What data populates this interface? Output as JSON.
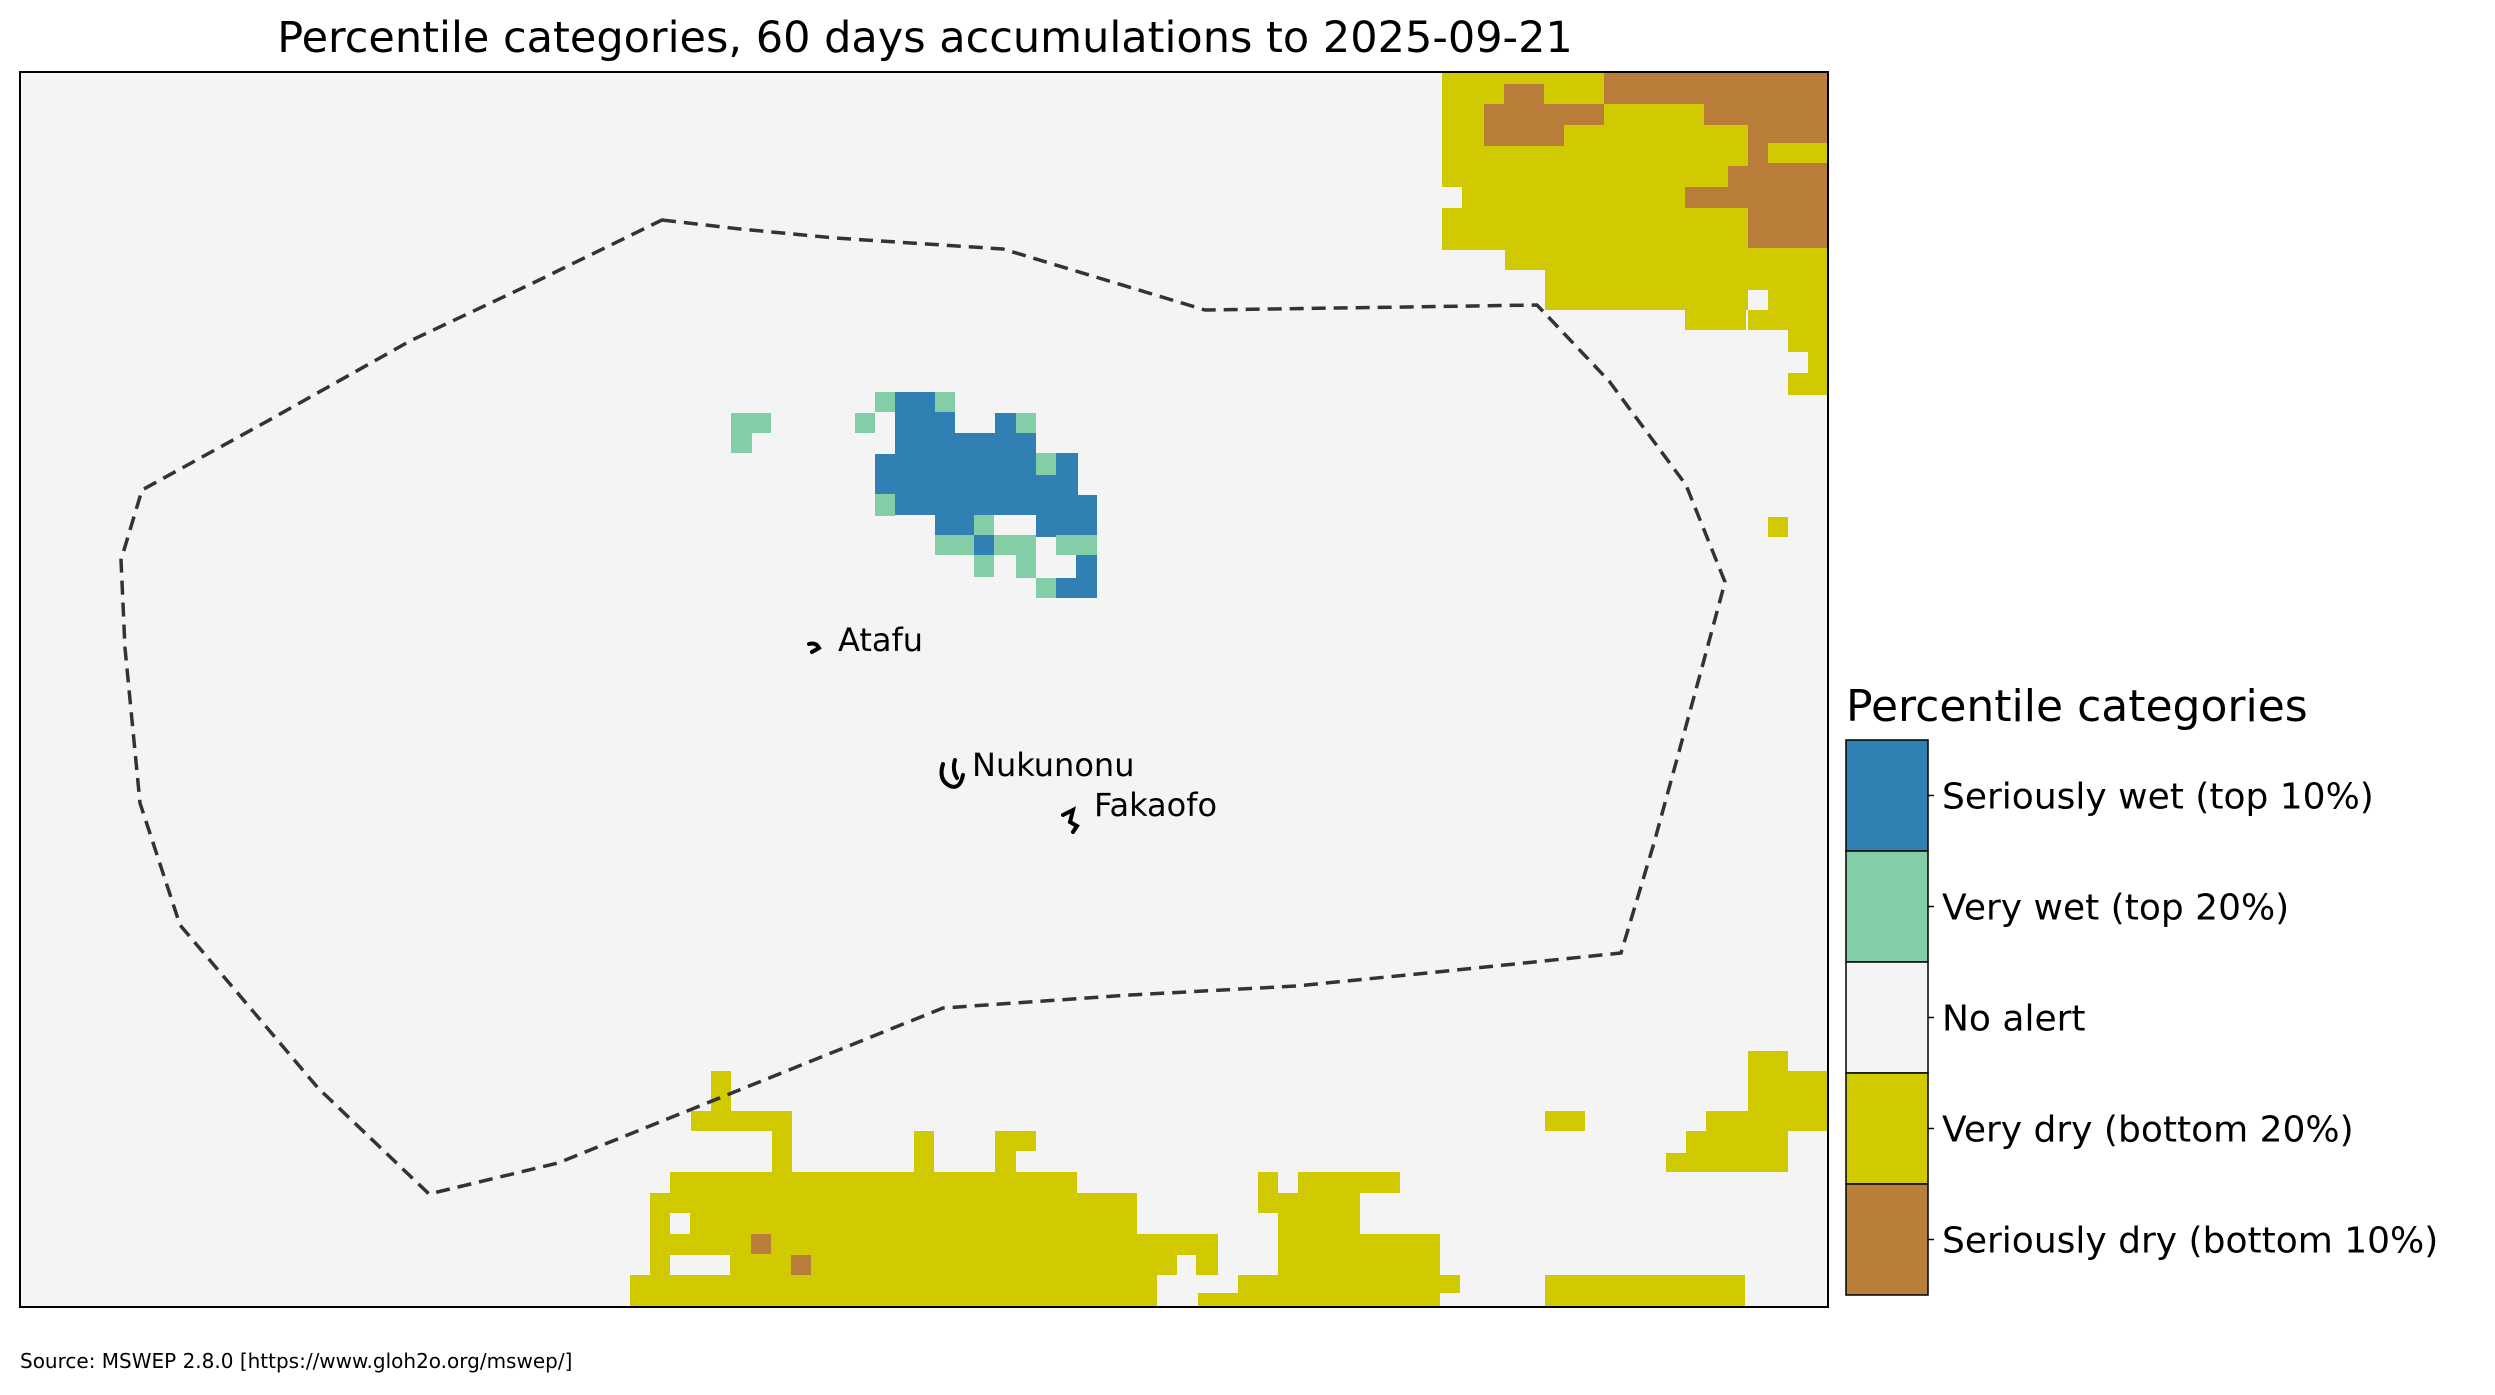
{
  "title": "Percentile categories, 60 days accumulations to 2025-09-21",
  "source": "Source: MSWEP 2.8.0 [https://www.gloh2o.org/mswep/]",
  "places": [
    {
      "name": "Atafu"
    },
    {
      "name": "Nukunonu"
    },
    {
      "name": "Fakaofo"
    }
  ],
  "legend": {
    "title": "Percentile categories",
    "items": [
      {
        "label": "Seriously wet (top 10%)",
        "color": "#3180b3"
      },
      {
        "label": "Very wet (top 20%)",
        "color": "#83cea6"
      },
      {
        "label": "No alert",
        "color": "#f4f4f4"
      },
      {
        "label": "Very dry (bottom 20%)",
        "color": "#d1c901"
      },
      {
        "label": "Seriously dry (bottom 10%)",
        "color": "#b97f3a"
      }
    ]
  },
  "colors": {
    "background": "#f4f4f4",
    "boundary": "#333333",
    "frame": "#000000"
  }
}
